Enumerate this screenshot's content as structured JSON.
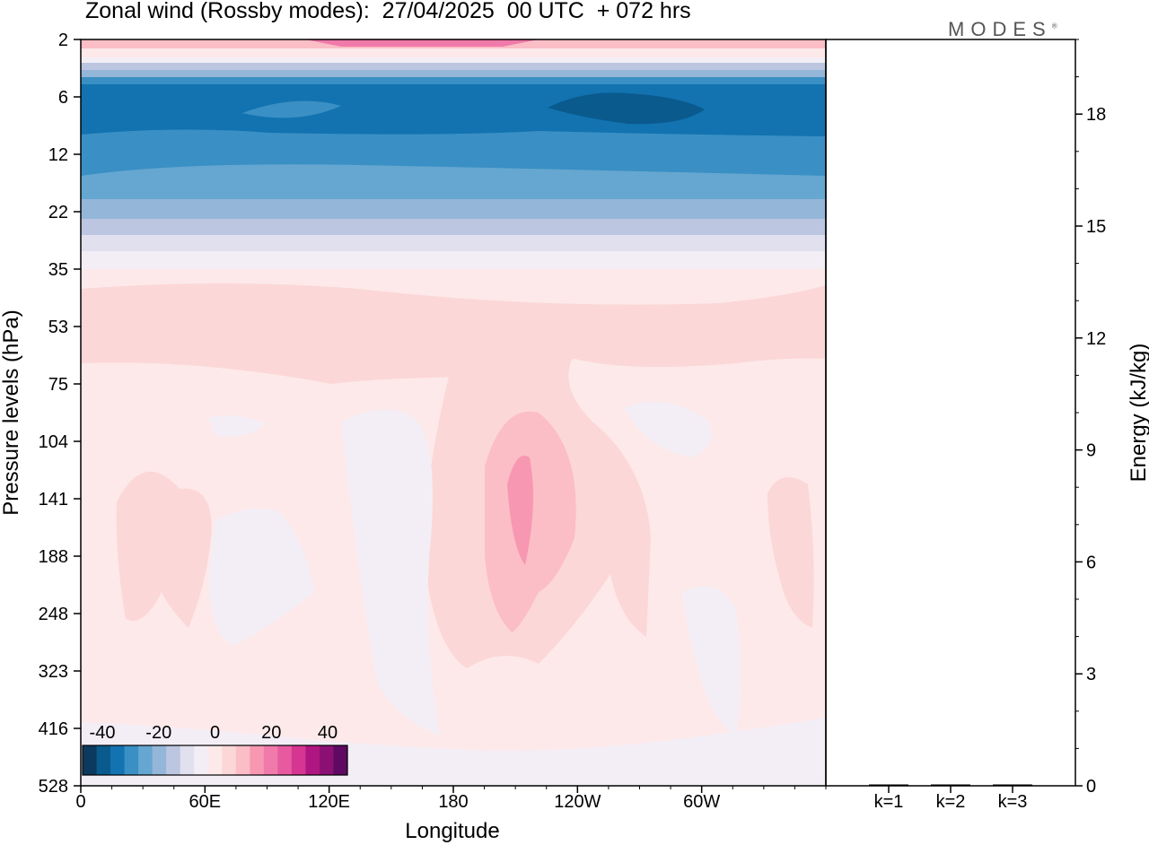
{
  "title": "Zonal wind (Rossby modes):  27/04/2025  00 UTC  + 072 hrs",
  "logo": {
    "text": "MODES",
    "mark": "®"
  },
  "chart_data": [
    {
      "type": "heatmap",
      "title": "Zonal wind (Rossby modes):  27/04/2025  00 UTC  + 072 hrs",
      "xlabel": "Longitude",
      "ylabel": "Pressure levels (hPa)",
      "x_ticks": [
        "0",
        "60E",
        "120E",
        "180",
        "120W",
        "60W"
      ],
      "y_ticks": [
        "2",
        "6",
        "12",
        "22",
        "35",
        "53",
        "75",
        "104",
        "141",
        "188",
        "248",
        "323",
        "416",
        "528"
      ],
      "y_scale": "log",
      "y_inverted": true,
      "colorbar": {
        "tick_labels": [
          "-40",
          "-20",
          "0",
          "20",
          "40"
        ],
        "colors": [
          "#0b3a5e",
          "#0a5a8e",
          "#1273b0",
          "#3a8fc4",
          "#65a7d0",
          "#94b6d8",
          "#bcc6e0",
          "#e0e0ef",
          "#f3eef6",
          "#fde9e9",
          "#fcd7d7",
          "#fbbec6",
          "#f897b2",
          "#f07aa9",
          "#e85a9f",
          "#d63592",
          "#b01681",
          "#8c1074",
          "#5e0a62"
        ]
      },
      "bands": [
        {
          "level": "2",
          "color": "#fbbec6"
        },
        {
          "level": "6",
          "color": "#1273b0"
        },
        {
          "level": "12",
          "color": "#3a8fc4"
        },
        {
          "level": "22",
          "color": "#94b6d8"
        },
        {
          "level": "35",
          "color": "#fde9e9"
        },
        {
          "level": "53",
          "color": "#fcd7d7"
        },
        {
          "level": "141",
          "color": "#f897b2"
        },
        {
          "level": "248",
          "color": "#f3eef6"
        }
      ]
    },
    {
      "type": "bar",
      "ylabel": "Energy (kJ/kg)",
      "categories": [
        "k=1",
        "k=2",
        "k=3"
      ],
      "values": [
        0.03,
        0.02,
        0.02
      ],
      "ylim": [
        0,
        20
      ],
      "y_ticks": [
        "0",
        "3",
        "6",
        "9",
        "12",
        "15",
        "18"
      ]
    }
  ]
}
